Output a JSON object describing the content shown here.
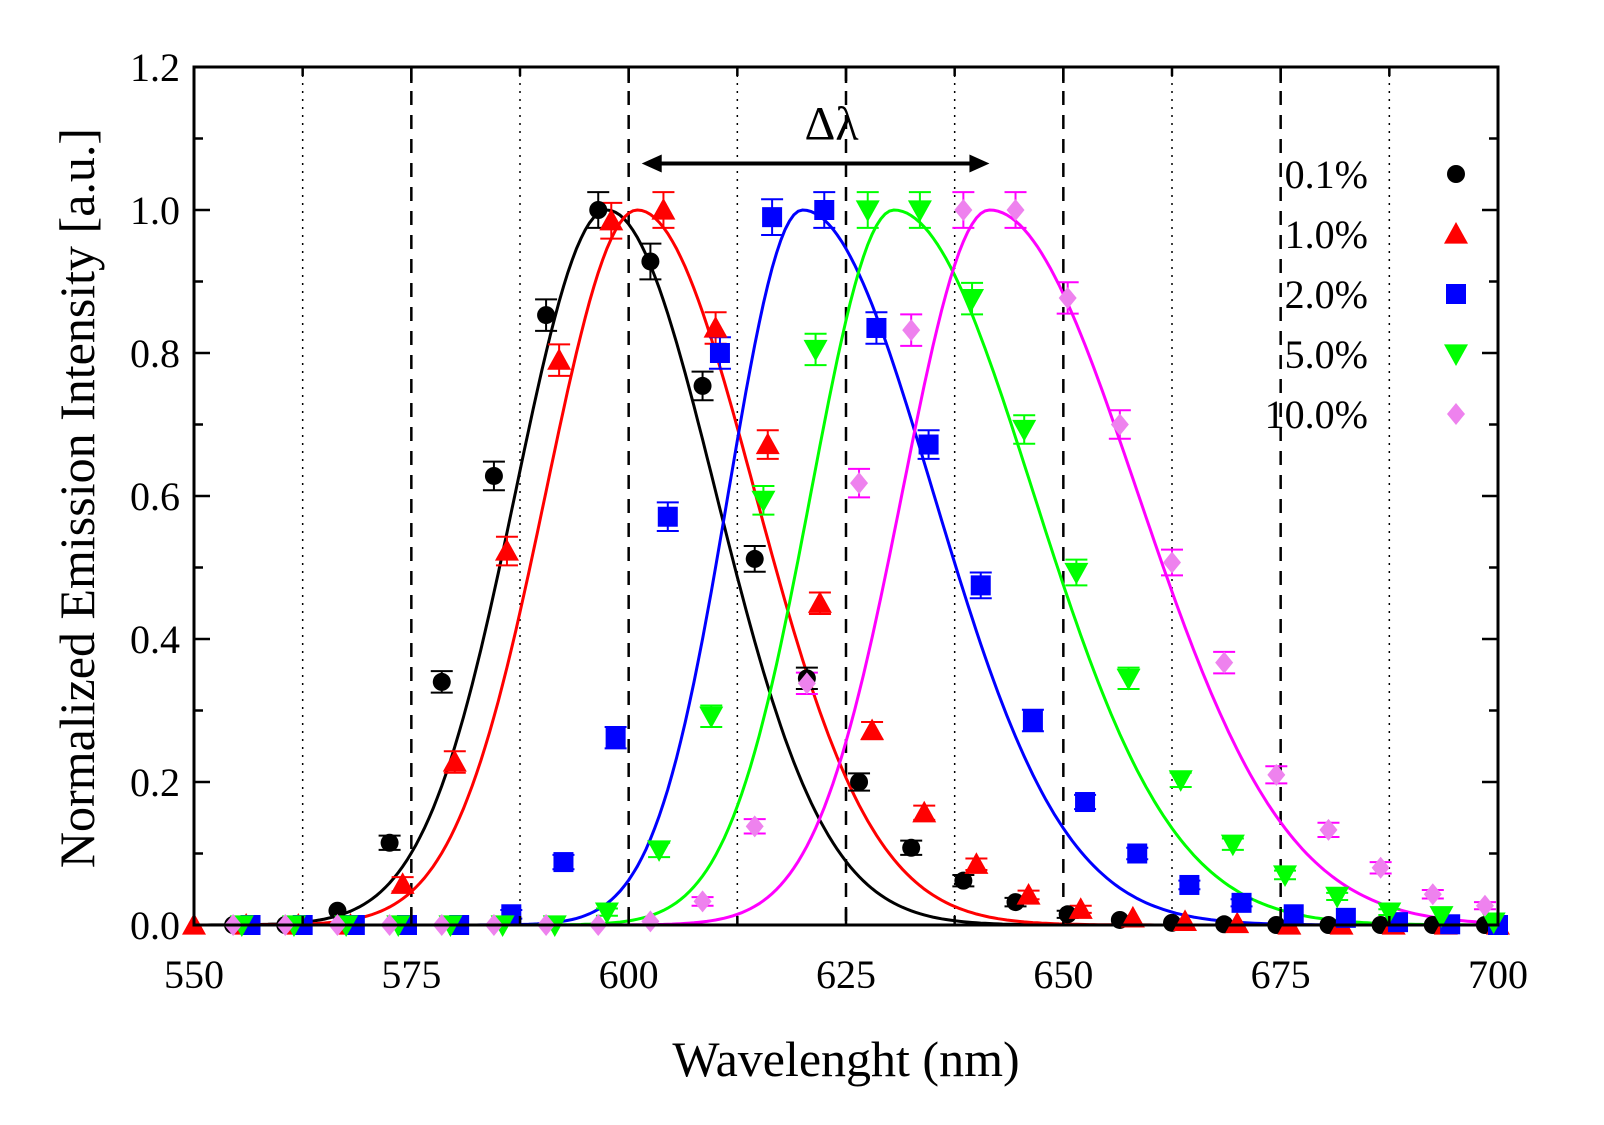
{
  "chart_data": {
    "type": "line",
    "xlabel": "Wavelenght (nm)",
    "ylabel": "Normalized Emission Intensity [a.u.]",
    "xlim": [
      550,
      700
    ],
    "ylim": [
      0,
      1.2
    ],
    "x_ticks": [
      "550",
      "575",
      "600",
      "625",
      "650",
      "675",
      "700"
    ],
    "y_ticks": [
      "0.0",
      "0.2",
      "0.4",
      "0.6",
      "0.8",
      "1.0",
      "1.2"
    ],
    "x_tick_values": [
      550,
      575,
      600,
      625,
      650,
      675,
      700
    ],
    "y_tick_values": [
      0,
      0.2,
      0.4,
      0.6,
      0.8,
      1.0,
      1.2
    ],
    "annotation": {
      "text": "Δλ",
      "from": 601.5,
      "to": 641.5,
      "y": 1.065
    },
    "legend_position": "top-right",
    "guide_lines": [
      {
        "style": "dotted",
        "x": [
          562.5,
          587.5,
          612.5,
          637.5,
          662.5,
          687.5
        ]
      },
      {
        "style": "dashed",
        "x": [
          575,
          600,
          625,
          650,
          675
        ]
      }
    ],
    "series": [
      {
        "name": "0.1%",
        "color": "#000000",
        "marker": "circle",
        "peak": 597.5,
        "sigma_left": 10.5,
        "sigma_right": 12.5,
        "peak_height": 1.0,
        "x": [
          554.5,
          560.5,
          566.5,
          572.5,
          578.5,
          584.5,
          590.5,
          596.5,
          602.5,
          608.5,
          614.5,
          620.5,
          626.5,
          632.5,
          638.5,
          644.5,
          650.5,
          656.5,
          662.5,
          668.5,
          674.5,
          680.5,
          686.5,
          692.5,
          698.5
        ],
        "y": [
          0.0,
          0.0,
          0.02,
          0.115,
          0.34,
          0.628,
          0.853,
          1.0,
          0.928,
          0.754,
          0.512,
          0.345,
          0.2,
          0.108,
          0.062,
          0.032,
          0.015,
          0.007,
          0.003,
          0.001,
          0.0,
          0.0,
          0.0,
          0.0,
          0.0
        ],
        "err": [
          0,
          0,
          0,
          0.01,
          0.015,
          0.02,
          0.022,
          0.025,
          0.025,
          0.02,
          0.018,
          0.015,
          0.012,
          0.01,
          0.008,
          0.006,
          0.005,
          0,
          0,
          0,
          0,
          0,
          0,
          0,
          0
        ]
      },
      {
        "name": "1.0%",
        "color": "#ff0000",
        "marker": "triangle-up",
        "peak": 601.0,
        "sigma_left": 10.5,
        "sigma_right": 13.5,
        "peak_height": 1.0,
        "x": [
          550,
          556,
          562,
          568,
          574,
          580,
          586,
          592,
          598,
          604,
          610,
          616,
          622,
          628,
          634,
          640,
          646,
          652,
          658,
          664,
          670,
          676,
          682,
          688,
          694,
          700
        ],
        "y": [
          0.0,
          0.0,
          0.0,
          0.0,
          0.057,
          0.228,
          0.523,
          0.79,
          0.985,
          1.0,
          0.835,
          0.672,
          0.45,
          0.272,
          0.157,
          0.085,
          0.042,
          0.022,
          0.01,
          0.005,
          0.002,
          0.0,
          0.0,
          0.0,
          0.0,
          0.0
        ],
        "err": [
          0,
          0,
          0,
          0,
          0.01,
          0.015,
          0.02,
          0.022,
          0.025,
          0.025,
          0.022,
          0.02,
          0.015,
          0.012,
          0.01,
          0.008,
          0.006,
          0.005,
          0,
          0,
          0,
          0,
          0,
          0,
          0,
          0
        ]
      },
      {
        "name": "2.0%",
        "color": "#0000ff",
        "marker": "square",
        "peak": 620.0,
        "sigma_left": 8.5,
        "sigma_right": 15.0,
        "peak_height": 1.0,
        "x": [
          556.5,
          562.5,
          568.5,
          574.5,
          580.5,
          586.5,
          592.5,
          598.5,
          604.5,
          610.5,
          616.5,
          622.5,
          628.5,
          634.5,
          640.5,
          646.5,
          652.5,
          658.5,
          664.5,
          670.5,
          676.5,
          682.5,
          688.5,
          694.5,
          700
        ],
        "y": [
          0.0,
          0.0,
          0.0,
          0.0,
          0.0,
          0.015,
          0.088,
          0.262,
          0.571,
          0.8,
          0.99,
          1.0,
          0.835,
          0.672,
          0.475,
          0.286,
          0.172,
          0.1,
          0.056,
          0.031,
          0.015,
          0.01,
          0.004,
          0.001,
          0.0
        ],
        "err": [
          0,
          0,
          0,
          0,
          0,
          0.006,
          0.01,
          0.015,
          0.02,
          0.022,
          0.025,
          0.025,
          0.022,
          0.02,
          0.018,
          0.015,
          0.01,
          0.008,
          0.006,
          0.005,
          0,
          0,
          0,
          0,
          0
        ]
      },
      {
        "name": "5.0%",
        "color": "#00ff00",
        "marker": "triangle-down",
        "peak": 630.5,
        "sigma_left": 9.5,
        "sigma_right": 16.0,
        "peak_height": 1.0,
        "x": [
          555.5,
          561.5,
          567.5,
          573.5,
          579.5,
          585.5,
          591.5,
          597.5,
          603.5,
          609.5,
          615.5,
          621.5,
          627.5,
          633.5,
          639.5,
          645.5,
          651.5,
          657.5,
          663.5,
          669.5,
          675.5,
          681.5,
          687.5,
          693.5,
          699.5
        ],
        "y": [
          0.0,
          0.0,
          0.0,
          0.0,
          0.0,
          0.0,
          0.0,
          0.018,
          0.105,
          0.292,
          0.594,
          0.805,
          1.0,
          1.0,
          0.876,
          0.693,
          0.493,
          0.345,
          0.203,
          0.113,
          0.07,
          0.04,
          0.018,
          0.013,
          0.004
        ],
        "err": [
          0,
          0,
          0,
          0,
          0,
          0,
          0,
          0.005,
          0.01,
          0.015,
          0.02,
          0.022,
          0.025,
          0.025,
          0.022,
          0.02,
          0.018,
          0.015,
          0.01,
          0.008,
          0.006,
          0.005,
          0.004,
          0,
          0
        ]
      },
      {
        "name": "10.0%",
        "color": "#ee82ee",
        "line_color": "#ff00ff",
        "marker": "diamond",
        "peak": 641.5,
        "sigma_left": 10.0,
        "sigma_right": 17.0,
        "peak_height": 1.0,
        "x": [
          554.5,
          560.5,
          566.5,
          572.5,
          578.5,
          584.5,
          590.5,
          596.5,
          602.5,
          608.5,
          614.5,
          620.5,
          626.5,
          632.5,
          638.5,
          644.5,
          650.5,
          656.5,
          662.5,
          668.5,
          674.5,
          680.5,
          686.5,
          692.5,
          698.5
        ],
        "y": [
          0.0,
          0.0,
          0.0,
          0.0,
          0.0,
          0.0,
          0.0,
          0.0,
          0.005,
          0.033,
          0.138,
          0.338,
          0.618,
          0.832,
          1.0,
          1.0,
          0.877,
          0.7,
          0.507,
          0.367,
          0.21,
          0.133,
          0.08,
          0.043,
          0.027
        ],
        "err": [
          0,
          0,
          0,
          0,
          0,
          0,
          0,
          0,
          0,
          0.006,
          0.01,
          0.015,
          0.02,
          0.022,
          0.025,
          0.025,
          0.022,
          0.02,
          0.018,
          0.015,
          0.012,
          0.01,
          0.008,
          0.006,
          0.005
        ]
      }
    ]
  }
}
